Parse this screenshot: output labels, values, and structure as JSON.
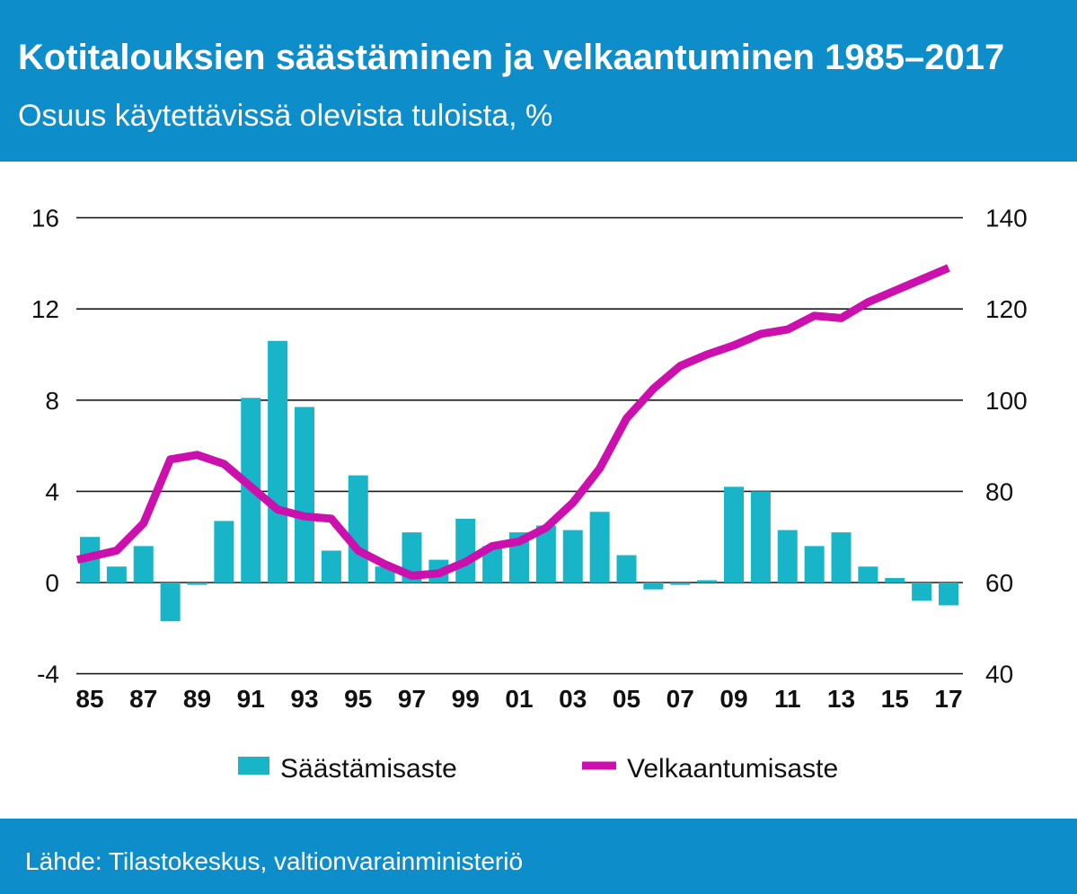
{
  "chart_data": {
    "type": "bar",
    "title": "Kotitalouksien säästäminen ja velkaantuminen 1985–2017",
    "subtitle": "Osuus käytettävissä olevista tuloista, %",
    "x": [
      1985,
      1986,
      1987,
      1988,
      1989,
      1990,
      1991,
      1992,
      1993,
      1994,
      1995,
      1996,
      1997,
      1998,
      1999,
      2000,
      2001,
      2002,
      2003,
      2004,
      2005,
      2006,
      2007,
      2008,
      2009,
      2010,
      2011,
      2012,
      2013,
      2014,
      2015,
      2016,
      2017
    ],
    "x_ticks": [
      1985,
      1987,
      1989,
      1991,
      1993,
      1995,
      1997,
      1999,
      2001,
      2003,
      2005,
      2007,
      2009,
      2011,
      2013,
      2015,
      2017
    ],
    "x_tick_labels": [
      "85",
      "87",
      "89",
      "91",
      "93",
      "95",
      "97",
      "99",
      "01",
      "03",
      "05",
      "07",
      "09",
      "11",
      "13",
      "15",
      "17"
    ],
    "y_left": {
      "range": [
        -4,
        16
      ],
      "ticks": [
        16,
        12,
        8,
        4,
        0,
        -4
      ]
    },
    "y_right": {
      "range": [
        40,
        140
      ],
      "ticks": [
        140,
        120,
        100,
        80,
        60,
        40
      ]
    },
    "grid": true,
    "legend_position": "bottom",
    "series": [
      {
        "name": "Säästämisaste",
        "type": "bar",
        "axis": "left",
        "color": "#18b4c8",
        "values": [
          2.0,
          0.7,
          1.6,
          -1.7,
          -0.1,
          2.7,
          8.1,
          10.6,
          7.7,
          1.4,
          4.7,
          0.7,
          2.2,
          1.0,
          2.8,
          1.6,
          2.2,
          2.5,
          2.3,
          3.1,
          1.2,
          -0.3,
          -0.1,
          0.1,
          4.2,
          4.0,
          2.3,
          1.6,
          2.2,
          0.7,
          0.2,
          -0.8,
          -1.0
        ]
      },
      {
        "name": "Velkaantumisaste",
        "type": "line",
        "axis": "right",
        "color": "#cc10ad",
        "values": [
          65,
          67,
          73,
          87,
          88,
          86,
          81,
          76,
          74.5,
          74,
          67,
          64,
          61.5,
          62,
          64.5,
          68,
          69,
          72,
          77.5,
          85,
          96,
          102.5,
          107.5,
          110,
          112,
          114.5,
          115.5,
          118.5,
          118,
          121.5,
          124,
          126.5,
          129
        ]
      }
    ]
  },
  "source": "Lähde: Tilastokeskus, valtionvarainministeriö"
}
